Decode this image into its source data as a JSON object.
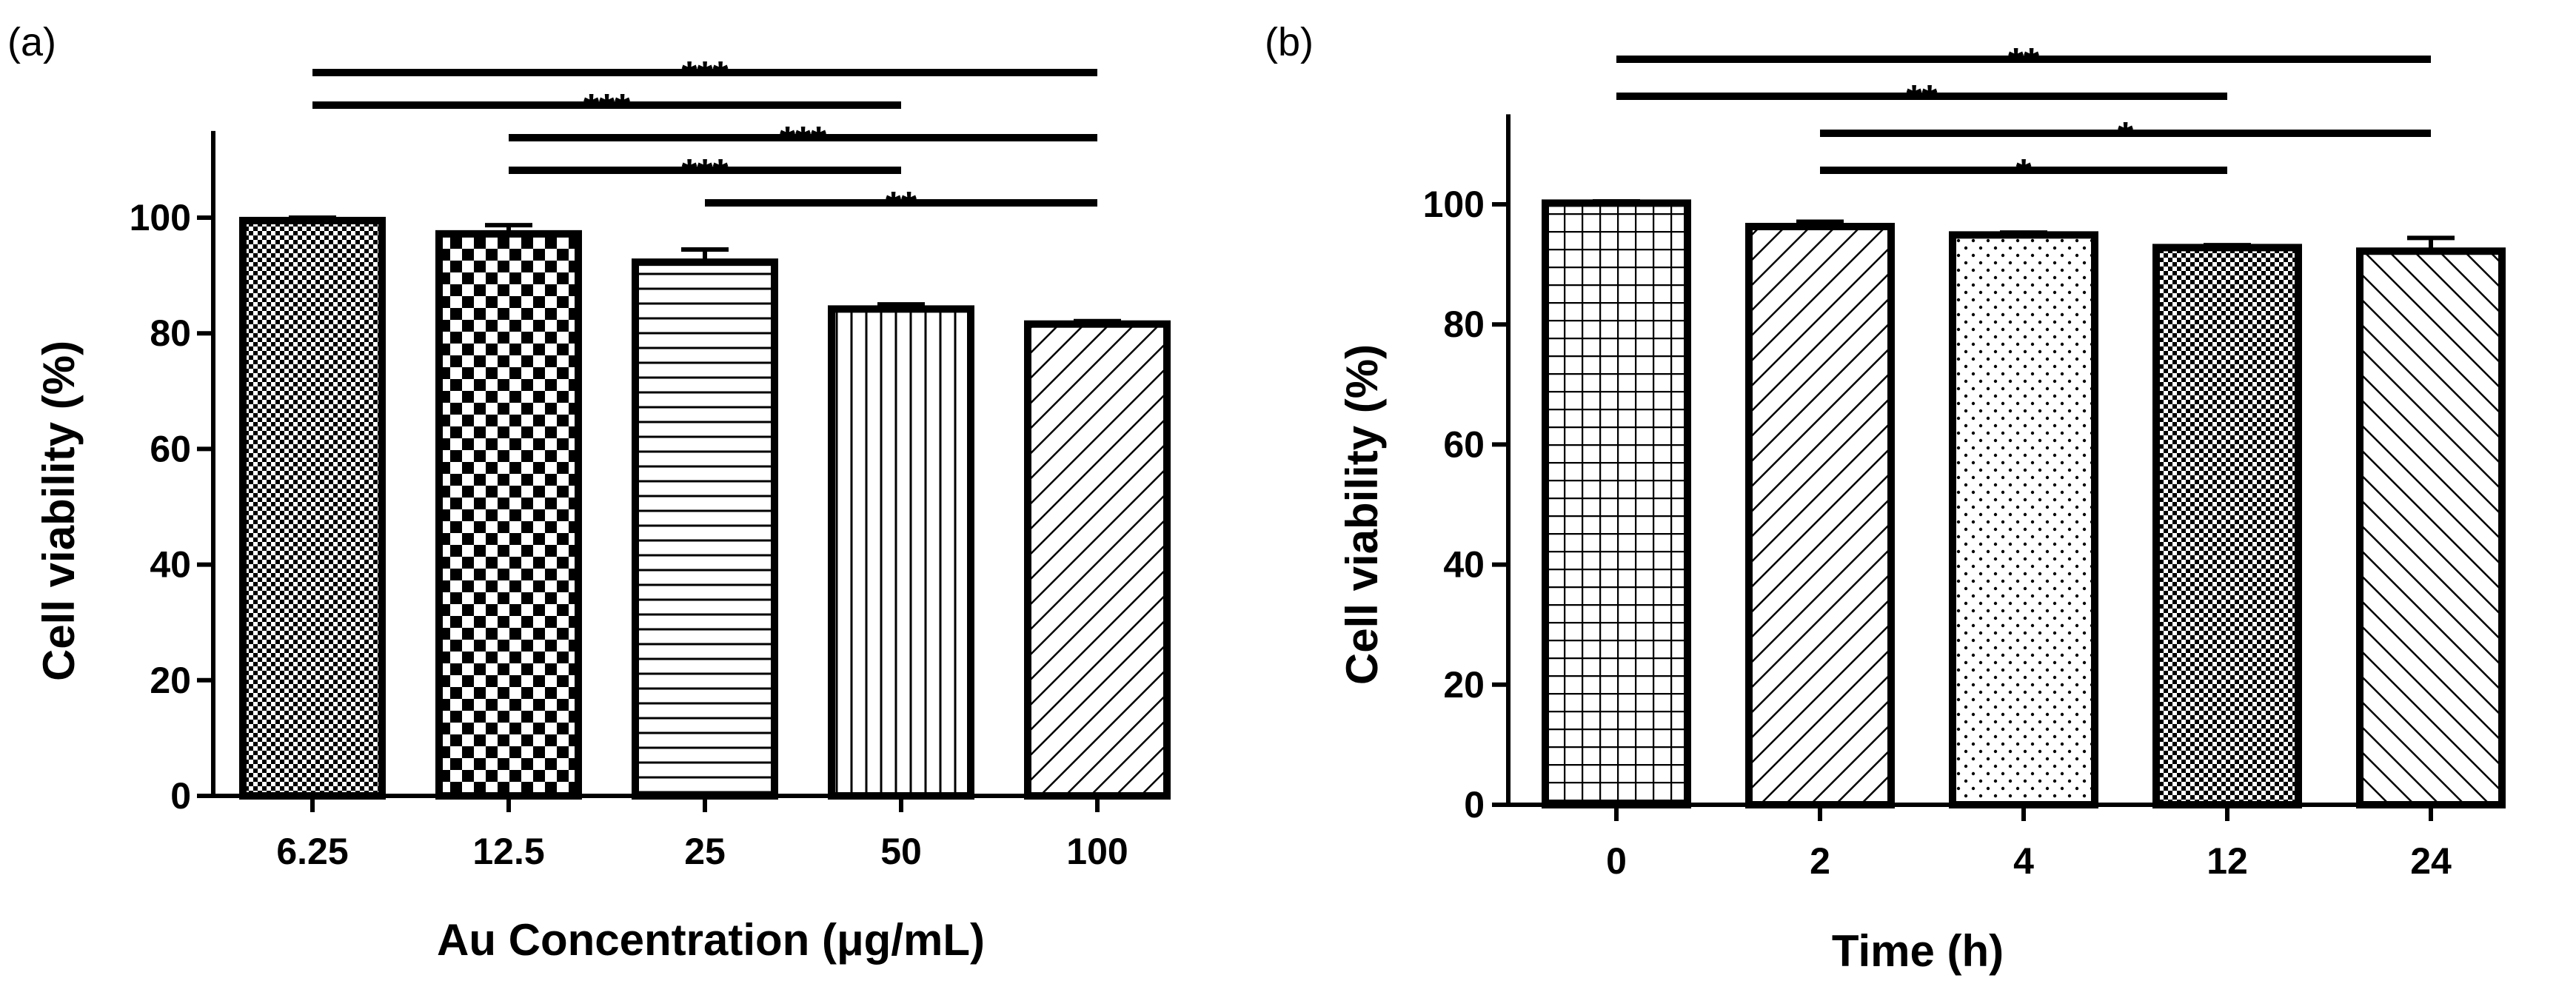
{
  "chart_data": [
    {
      "panel": "(a)",
      "type": "bar",
      "xlabel": "Au Concentration (μg/mL)",
      "ylabel": "Cell viability (%)",
      "ylim": [
        0,
        115
      ],
      "yticks": [
        "0",
        "20",
        "40",
        "60",
        "80",
        "100"
      ],
      "categories": [
        "6.25",
        "12.5",
        "25",
        "50",
        "100"
      ],
      "values": [
        99.5,
        97.2,
        92.3,
        84.2,
        81.6
      ],
      "errors": [
        0.5,
        1.5,
        2.2,
        0.8,
        0.5
      ],
      "patterns": [
        "fine-checker",
        "checker",
        "horizontal",
        "vertical",
        "diagonal"
      ],
      "significance": [
        {
          "from": 0,
          "to": 4,
          "label": "***"
        },
        {
          "from": 0,
          "to": 3,
          "label": "***"
        },
        {
          "from": 1,
          "to": 4,
          "label": "***"
        },
        {
          "from": 1,
          "to": 3,
          "label": "***"
        },
        {
          "from": 2,
          "to": 4,
          "label": "**"
        }
      ]
    },
    {
      "panel": "(b)",
      "type": "bar",
      "xlabel": "Time (h)",
      "ylabel": "Cell viability (%)",
      "ylim": [
        0,
        115
      ],
      "yticks": [
        "0",
        "20",
        "40",
        "60",
        "80",
        "100"
      ],
      "categories": [
        "0",
        "2",
        "4",
        "12",
        "24"
      ],
      "values": [
        100.2,
        96.3,
        94.9,
        92.8,
        92.2
      ],
      "errors": [
        0.3,
        0.8,
        0.4,
        0.4,
        2.2
      ],
      "patterns": [
        "grid",
        "diagonal",
        "dots",
        "fine-checker",
        "back-diagonal"
      ],
      "significance": [
        {
          "from": 0,
          "to": 4,
          "label": "**"
        },
        {
          "from": 0,
          "to": 3,
          "label": "**"
        },
        {
          "from": 1,
          "to": 4,
          "label": "*"
        },
        {
          "from": 1,
          "to": 3,
          "label": "*"
        }
      ]
    }
  ]
}
